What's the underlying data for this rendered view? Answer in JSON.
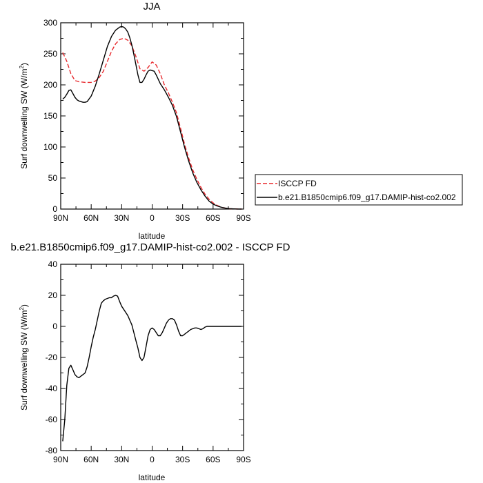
{
  "chart_data": [
    {
      "type": "line",
      "title": "JJA",
      "xlabel": "latitude",
      "ylabel": "Surf downwelling SW (W/m",
      "ylabel_sup": "2",
      "ylabel_close": ")",
      "xticks": [
        "90N",
        "60N",
        "30N",
        "0",
        "30S",
        "60S",
        "90S"
      ],
      "yticks": [
        "0",
        "50",
        "100",
        "150",
        "200",
        "250",
        "300"
      ],
      "xlim": [
        90,
        -90
      ],
      "ylim": [
        0,
        300
      ],
      "legend": {
        "placement": "right",
        "entries": [
          "ISCCP FD",
          "b.e21.B1850cmip6.f09_g17.DAMIP-hist-co2.002"
        ]
      },
      "series": [
        {
          "name": "ISCCP FD",
          "color": "#e8282c",
          "dash": "dashed",
          "x": [
            88,
            84,
            80,
            76,
            72,
            66,
            60,
            56,
            52,
            48,
            44,
            40,
            36,
            32,
            28,
            24,
            20,
            16,
            12,
            8,
            4,
            0,
            -4,
            -8,
            -12,
            -16,
            -20,
            -24,
            -28,
            -32,
            -36,
            -40,
            -44,
            -48,
            -52,
            -56,
            -60,
            -64,
            -68,
            -72,
            -76,
            -80,
            -84,
            -88
          ],
          "y": [
            252,
            238,
            218,
            207,
            205,
            204,
            204,
            206,
            212,
            222,
            238,
            254,
            266,
            273,
            275,
            272,
            263,
            246,
            226,
            222,
            228,
            237,
            232,
            218,
            200,
            187,
            172,
            155,
            130,
            104,
            82,
            63,
            48,
            35,
            24,
            16,
            10,
            6,
            3,
            1.5,
            0.7,
            0.3,
            0.1,
            0
          ]
        },
        {
          "name": "b.e21.B1850cmip6.f09_g17.DAMIP-hist-co2.002",
          "color": "#000000",
          "dash": "solid",
          "x": [
            88,
            86,
            84,
            82,
            80,
            78,
            76,
            74,
            72,
            70,
            68,
            66,
            64,
            60,
            56,
            52,
            48,
            44,
            40,
            36,
            32,
            30,
            28,
            26,
            24,
            22,
            20,
            18,
            16,
            14,
            12,
            10,
            8,
            6,
            4,
            2,
            0,
            -2,
            -4,
            -8,
            -12,
            -16,
            -20,
            -24,
            -28,
            -32,
            -36,
            -40,
            -44,
            -48,
            -52,
            -56,
            -60,
            -64,
            -68,
            -72,
            -76,
            -80,
            -84,
            -88
          ],
          "y": [
            177,
            180,
            185,
            191,
            192,
            186,
            180,
            176,
            174,
            173,
            172,
            172,
            173,
            182,
            198,
            218,
            240,
            262,
            278,
            288,
            293,
            294,
            293,
            290,
            285,
            276,
            264,
            249,
            233,
            216,
            204,
            204,
            209,
            216,
            222,
            224,
            223,
            222,
            216,
            202,
            192,
            180,
            167,
            149,
            124,
            99,
            77,
            58,
            43,
            31,
            21,
            13,
            8,
            5,
            3,
            1.5,
            0.7,
            0.3,
            0.1,
            0
          ]
        }
      ]
    },
    {
      "type": "line",
      "title": "b.e21.B1850cmip6.f09_g17.DAMIP-hist-co2.002 - ISCCP FD",
      "xlabel": "latitude",
      "ylabel": "Surf downwelling SW (W/m",
      "ylabel_sup": "2",
      "ylabel_close": ")",
      "xticks": [
        "90N",
        "60N",
        "30N",
        "0",
        "30S",
        "60S",
        "90S"
      ],
      "yticks": [
        "-80",
        "-60",
        "-40",
        "-20",
        "0",
        "20",
        "40"
      ],
      "xlim": [
        90,
        -90
      ],
      "ylim": [
        -80,
        40
      ],
      "series": [
        {
          "color": "#000000",
          "dash": "solid",
          "x": [
            88,
            86,
            84,
            82,
            80,
            78,
            76,
            74,
            72,
            70,
            68,
            66,
            64,
            62,
            60,
            58,
            56,
            54,
            52,
            50,
            48,
            46,
            44,
            42,
            40,
            38,
            36,
            34,
            32,
            30,
            28,
            26,
            24,
            22,
            20,
            18,
            16,
            14,
            12,
            10,
            8,
            6,
            4,
            2,
            0,
            -2,
            -4,
            -6,
            -8,
            -10,
            -12,
            -14,
            -16,
            -18,
            -20,
            -22,
            -24,
            -26,
            -28,
            -30,
            -32,
            -34,
            -36,
            -38,
            -40,
            -42,
            -44,
            -46,
            -48,
            -50,
            -52,
            -54,
            -56,
            -58,
            -60,
            -62,
            -64,
            -66,
            -68,
            -70,
            -72,
            -76,
            -80,
            -84,
            -88
          ],
          "y": [
            -74,
            -60,
            -38,
            -27,
            -25,
            -28,
            -31,
            -32.5,
            -33,
            -32,
            -31,
            -30,
            -26,
            -20,
            -13,
            -7,
            -2,
            4,
            10,
            15,
            16.5,
            17.5,
            18,
            18.5,
            18.5,
            19.5,
            20,
            19.5,
            16,
            13,
            11,
            9,
            7,
            4,
            1,
            -4,
            -9,
            -14,
            -20,
            -22,
            -20,
            -13,
            -6,
            -2,
            -1,
            -2,
            -4,
            -6,
            -6,
            -4,
            -1,
            2,
            4,
            5,
            5,
            4,
            1,
            -3,
            -6,
            -6,
            -5,
            -4,
            -3,
            -2,
            -1.5,
            -1,
            -1,
            -1.5,
            -2,
            -1.5,
            -0.5,
            0,
            0,
            0,
            0,
            0,
            0,
            0,
            0,
            0,
            0,
            0,
            0,
            0,
            0
          ]
        }
      ]
    }
  ]
}
